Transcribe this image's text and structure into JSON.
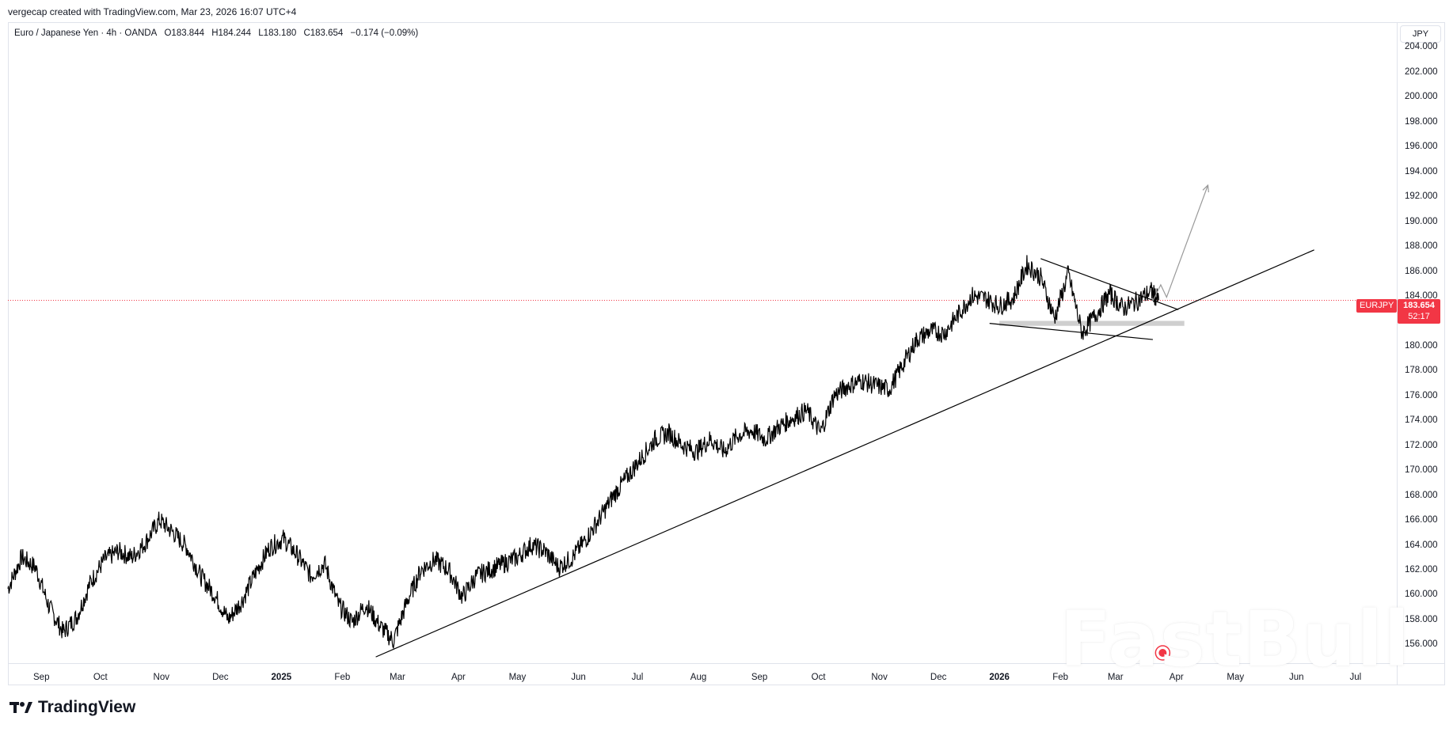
{
  "header": {
    "attribution": "vergecap created with TradingView.com, Mar 23, 2026 16:07 UTC+4"
  },
  "legend": {
    "symbol": "Euro / Japanese Yen · 4h · OANDA",
    "open": "O183.844",
    "high": "H184.244",
    "low": "L183.180",
    "close": "C183.654",
    "change": "−0.174 (−0.09%)"
  },
  "price_axis": {
    "currency": "JPY",
    "ticks": [
      "204.000",
      "202.000",
      "200.000",
      "198.000",
      "196.000",
      "194.000",
      "192.000",
      "190.000",
      "188.000",
      "186.000",
      "184.000",
      "182.000",
      "180.000",
      "178.000",
      "176.000",
      "174.000",
      "172.000",
      "170.000",
      "168.000",
      "166.000",
      "164.000",
      "162.000",
      "160.000",
      "158.000",
      "156.000"
    ]
  },
  "time_axis": {
    "ticks": [
      {
        "label": "Sep",
        "bold": false
      },
      {
        "label": "Oct",
        "bold": false
      },
      {
        "label": "Nov",
        "bold": false
      },
      {
        "label": "Dec",
        "bold": false
      },
      {
        "label": "2025",
        "bold": true
      },
      {
        "label": "Feb",
        "bold": false
      },
      {
        "label": "Mar",
        "bold": false
      },
      {
        "label": "Apr",
        "bold": false
      },
      {
        "label": "May",
        "bold": false
      },
      {
        "label": "Jun",
        "bold": false
      },
      {
        "label": "Jul",
        "bold": false
      },
      {
        "label": "Aug",
        "bold": false
      },
      {
        "label": "Sep",
        "bold": false
      },
      {
        "label": "Oct",
        "bold": false
      },
      {
        "label": "Nov",
        "bold": false
      },
      {
        "label": "Dec",
        "bold": false
      },
      {
        "label": "2026",
        "bold": true
      },
      {
        "label": "Feb",
        "bold": false
      },
      {
        "label": "Mar",
        "bold": false
      },
      {
        "label": "Apr",
        "bold": false
      },
      {
        "label": "May",
        "bold": false
      },
      {
        "label": "Jun",
        "bold": false
      },
      {
        "label": "Jul",
        "bold": false
      }
    ]
  },
  "current_price": {
    "symbol": "EURJPY",
    "price": "183.654",
    "countdown": "52:17",
    "color": "#f23645"
  },
  "brand": {
    "name": "TradingView",
    "watermark": "FastBull"
  },
  "chart_data": {
    "type": "line",
    "title": "Euro / Japanese Yen · 4h · OANDA",
    "xlabel": "",
    "ylabel": "",
    "ylim": [
      154.5,
      206
    ],
    "xlim": [
      "2024-08-15",
      "2026-07-22"
    ],
    "grid": false,
    "series": [
      {
        "name": "EURJPY",
        "color": "#000000",
        "points": [
          [
            "2024-08-15",
            160.5
          ],
          [
            "2024-08-22",
            163.0
          ],
          [
            "2024-08-29",
            162.2
          ],
          [
            "2024-09-05",
            159.0
          ],
          [
            "2024-09-12",
            157.0
          ],
          [
            "2024-09-19",
            158.2
          ],
          [
            "2024-09-26",
            161.0
          ],
          [
            "2024-10-03",
            162.8
          ],
          [
            "2024-10-10",
            163.5
          ],
          [
            "2024-10-17",
            163.0
          ],
          [
            "2024-10-24",
            164.2
          ],
          [
            "2024-10-31",
            166.0
          ],
          [
            "2024-11-07",
            165.0
          ],
          [
            "2024-11-14",
            163.8
          ],
          [
            "2024-11-21",
            161.5
          ],
          [
            "2024-11-28",
            160.0
          ],
          [
            "2024-12-05",
            158.0
          ],
          [
            "2024-12-12",
            159.5
          ],
          [
            "2024-12-19",
            161.8
          ],
          [
            "2024-12-26",
            163.8
          ],
          [
            "2025-01-02",
            164.5
          ],
          [
            "2025-01-09",
            163.2
          ],
          [
            "2025-01-16",
            161.5
          ],
          [
            "2025-01-23",
            162.5
          ],
          [
            "2025-01-30",
            159.2
          ],
          [
            "2025-02-06",
            157.8
          ],
          [
            "2025-02-13",
            159.2
          ],
          [
            "2025-02-20",
            157.5
          ],
          [
            "2025-02-27",
            156.3
          ],
          [
            "2025-03-06",
            159.5
          ],
          [
            "2025-03-13",
            162.0
          ],
          [
            "2025-03-20",
            162.8
          ],
          [
            "2025-03-27",
            162.0
          ],
          [
            "2025-04-03",
            159.8
          ],
          [
            "2025-04-10",
            161.5
          ],
          [
            "2025-04-17",
            162.0
          ],
          [
            "2025-04-24",
            162.5
          ],
          [
            "2025-05-01",
            163.0
          ],
          [
            "2025-05-08",
            164.0
          ],
          [
            "2025-05-15",
            163.5
          ],
          [
            "2025-05-22",
            162.2
          ],
          [
            "2025-05-29",
            163.0
          ],
          [
            "2025-06-05",
            164.5
          ],
          [
            "2025-06-12",
            166.2
          ],
          [
            "2025-06-19",
            168.0
          ],
          [
            "2025-06-26",
            169.5
          ],
          [
            "2025-07-03",
            171.0
          ],
          [
            "2025-07-10",
            172.5
          ],
          [
            "2025-07-17",
            173.0
          ],
          [
            "2025-07-24",
            172.0
          ],
          [
            "2025-07-31",
            171.5
          ],
          [
            "2025-08-07",
            172.5
          ],
          [
            "2025-08-14",
            171.5
          ],
          [
            "2025-08-21",
            172.8
          ],
          [
            "2025-08-28",
            173.2
          ],
          [
            "2025-09-04",
            172.5
          ],
          [
            "2025-09-11",
            173.5
          ],
          [
            "2025-09-18",
            174.2
          ],
          [
            "2025-09-25",
            174.8
          ],
          [
            "2025-10-02",
            173.0
          ],
          [
            "2025-10-09",
            176.0
          ],
          [
            "2025-10-16",
            176.8
          ],
          [
            "2025-10-23",
            177.2
          ],
          [
            "2025-10-30",
            176.8
          ],
          [
            "2025-11-06",
            176.5
          ],
          [
            "2025-11-13",
            178.5
          ],
          [
            "2025-11-20",
            180.5
          ],
          [
            "2025-11-27",
            181.2
          ],
          [
            "2025-12-04",
            181.0
          ],
          [
            "2025-12-11",
            182.5
          ],
          [
            "2025-12-18",
            184.0
          ],
          [
            "2025-12-25",
            183.8
          ],
          [
            "2026-01-01",
            183.2
          ],
          [
            "2026-01-08",
            183.8
          ],
          [
            "2026-01-15",
            186.5
          ],
          [
            "2026-01-22",
            185.5
          ],
          [
            "2026-01-29",
            182.2
          ],
          [
            "2026-02-05",
            185.8
          ],
          [
            "2026-02-12",
            181.0
          ],
          [
            "2026-02-19",
            182.5
          ],
          [
            "2026-02-26",
            184.2
          ],
          [
            "2026-03-05",
            183.0
          ],
          [
            "2026-03-12",
            183.6
          ],
          [
            "2026-03-19",
            184.4
          ],
          [
            "2026-03-23",
            183.654
          ]
        ]
      }
    ],
    "annotations": [
      {
        "type": "trendline",
        "from": [
          "2025-02-18",
          155.0
        ],
        "to": [
          "2026-06-10",
          187.7
        ]
      },
      {
        "type": "trendline",
        "from": [
          "2026-01-22",
          187.0
        ],
        "to": [
          "2026-04-02",
          182.9
        ]
      },
      {
        "type": "trendline",
        "from": [
          "2025-12-27",
          181.8
        ],
        "to": [
          "2026-03-20",
          180.5
        ]
      },
      {
        "type": "zone",
        "from": [
          "2026-01-01",
          182.0
        ],
        "to": [
          "2026-04-05",
          181.6
        ],
        "color": "#cfcfcf"
      },
      {
        "type": "projection",
        "color": "#999999",
        "points": [
          [
            "2026-03-20",
            183.6
          ],
          [
            "2026-03-24",
            184.9
          ],
          [
            "2026-03-27",
            183.9
          ],
          [
            "2026-04-17",
            192.9
          ]
        ]
      },
      {
        "type": "price_line",
        "value": 183.654,
        "color": "#f23645"
      }
    ]
  }
}
